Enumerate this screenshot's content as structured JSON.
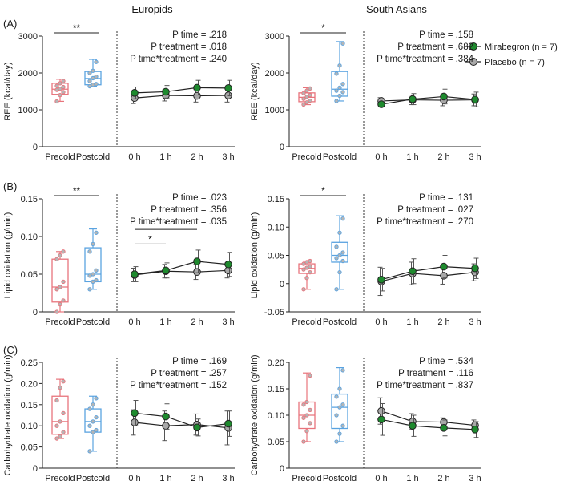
{
  "column_titles": [
    "Europids",
    "South Asians"
  ],
  "legend": {
    "mirabegron": "Mirabegron (n = 7)",
    "placebo": "Placebo (n = 7)"
  },
  "colors": {
    "precold": "#e8747c",
    "postcold": "#5aa3e0",
    "mirabegron": "#1e8a2e",
    "placebo": "#a8a8a8",
    "axis": "#222222"
  },
  "chart_data": [
    {
      "type": "box+line",
      "panel_label": "(A)",
      "group": "Europids",
      "ylabel": "REE (kcal/day)",
      "ylim": [
        0,
        3000
      ],
      "yticks": [
        0,
        1000,
        2000,
        3000
      ],
      "box_categories": [
        "Precold",
        "Postcold"
      ],
      "boxes": [
        {
          "name": "Precold",
          "min": 1230,
          "q1": 1420,
          "median": 1560,
          "q3": 1720,
          "max": 1830,
          "points": [
            1230,
            1400,
            1480,
            1540,
            1570,
            1620,
            1650,
            1720,
            1780
          ]
        },
        {
          "name": "Postcold",
          "min": 1640,
          "q1": 1680,
          "median": 1850,
          "q3": 2040,
          "max": 2370,
          "points": [
            1640,
            1680,
            1700,
            1780,
            1860,
            1900,
            2000,
            2060,
            2300
          ]
        }
      ],
      "time_categories": [
        "0 h",
        "1 h",
        "2 h",
        "3 h"
      ],
      "series": [
        {
          "name": "Mirabegron",
          "values": [
            1460,
            1490,
            1600,
            1590
          ],
          "err": [
            160,
            170,
            200,
            210
          ]
        },
        {
          "name": "Placebo",
          "values": [
            1320,
            1390,
            1380,
            1390
          ],
          "err": [
            150,
            150,
            170,
            180
          ]
        }
      ],
      "sig": [
        {
          "label": "**",
          "from": "Precold",
          "to": "Postcold"
        }
      ],
      "stats": [
        "P time = .218",
        "P treatment = .018",
        "P time*treatment = .240"
      ],
      "time_sig": []
    },
    {
      "type": "box+line",
      "panel_label": "",
      "group": "South Asians",
      "ylabel": "REE (kcal/day)",
      "ylim": [
        0,
        3000
      ],
      "yticks": [
        0,
        1000,
        2000,
        3000
      ],
      "box_categories": [
        "Precold",
        "Postcold"
      ],
      "boxes": [
        {
          "name": "Precold",
          "min": 1140,
          "q1": 1220,
          "median": 1340,
          "q3": 1460,
          "max": 1600,
          "points": [
            1140,
            1200,
            1250,
            1300,
            1350,
            1400,
            1450,
            1520,
            1580
          ]
        },
        {
          "name": "Postcold",
          "min": 1240,
          "q1": 1370,
          "median": 1560,
          "q3": 2040,
          "max": 2850,
          "points": [
            1240,
            1380,
            1480,
            1520,
            1600,
            1700,
            1980,
            2200,
            2800
          ]
        }
      ],
      "time_categories": [
        "0 h",
        "1 h",
        "2 h",
        "3 h"
      ],
      "series": [
        {
          "name": "Mirabegron",
          "values": [
            1150,
            1290,
            1360,
            1280
          ],
          "err": [
            60,
            150,
            200,
            200
          ]
        },
        {
          "name": "Placebo",
          "values": [
            1240,
            1270,
            1260,
            1270
          ],
          "err": [
            90,
            130,
            150,
            160
          ]
        }
      ],
      "sig": [
        {
          "label": "*",
          "from": "Precold",
          "to": "Postcold"
        }
      ],
      "stats": [
        "P time = .158",
        "P treatment = .682",
        "P time*treatment = .384"
      ],
      "time_sig": []
    },
    {
      "type": "box+line",
      "panel_label": "(B)",
      "group": "Europids",
      "ylabel": "Lipid oxidation (g/min)",
      "ylim": [
        0,
        0.15
      ],
      "yticks": [
        0,
        0.05,
        0.1,
        0.15
      ],
      "box_categories": [
        "Precold",
        "Postcold"
      ],
      "boxes": [
        {
          "name": "Precold",
          "min": 0.0,
          "q1": 0.013,
          "median": 0.033,
          "q3": 0.07,
          "max": 0.08,
          "points": [
            0.0,
            0.01,
            0.015,
            0.03,
            0.033,
            0.04,
            0.07,
            0.075,
            0.08
          ]
        },
        {
          "name": "Postcold",
          "min": 0.03,
          "q1": 0.04,
          "median": 0.05,
          "q3": 0.085,
          "max": 0.11,
          "points": [
            0.03,
            0.04,
            0.042,
            0.048,
            0.05,
            0.055,
            0.08,
            0.09,
            0.105
          ]
        }
      ],
      "time_categories": [
        "0 h",
        "1 h",
        "2 h",
        "3 h"
      ],
      "series": [
        {
          "name": "Mirabegron",
          "values": [
            0.05,
            0.055,
            0.067,
            0.063
          ],
          "err": [
            0.01,
            0.01,
            0.015,
            0.016
          ]
        },
        {
          "name": "Placebo",
          "values": [
            0.049,
            0.054,
            0.053,
            0.055
          ],
          "err": [
            0.009,
            0.009,
            0.01,
            0.01
          ]
        }
      ],
      "sig": [
        {
          "label": "**",
          "from": "Precold",
          "to": "Postcold"
        }
      ],
      "stats": [
        "P time = .023",
        "P treatment = .356",
        "P time*treatment = .035"
      ],
      "time_sig": [
        {
          "label": "*",
          "from": 0,
          "to": 1
        },
        {
          "label": "*",
          "from": 0,
          "to": 2
        }
      ]
    },
    {
      "type": "box+line",
      "panel_label": "",
      "group": "South Asians",
      "ylabel": "Lipid oxidation (g/min)",
      "ylim": [
        -0.05,
        0.15
      ],
      "yticks": [
        -0.05,
        0.0,
        0.05,
        0.1,
        0.15
      ],
      "box_categories": [
        "Precold",
        "Postcold"
      ],
      "boxes": [
        {
          "name": "Precold",
          "min": -0.01,
          "q1": 0.018,
          "median": 0.027,
          "q3": 0.035,
          "max": 0.04,
          "points": [
            -0.01,
            0.01,
            0.02,
            0.025,
            0.028,
            0.03,
            0.035,
            0.038,
            0.04
          ]
        },
        {
          "name": "Postcold",
          "min": -0.01,
          "q1": 0.038,
          "median": 0.05,
          "q3": 0.073,
          "max": 0.12,
          "points": [
            -0.01,
            0.02,
            0.04,
            0.045,
            0.05,
            0.055,
            0.065,
            0.09,
            0.115
          ]
        }
      ],
      "time_categories": [
        "0 h",
        "1 h",
        "2 h",
        "3 h"
      ],
      "series": [
        {
          "name": "Mirabegron",
          "values": [
            0.007,
            0.022,
            0.03,
            0.027
          ],
          "err": [
            0.02,
            0.022,
            0.02,
            0.018
          ]
        },
        {
          "name": "Placebo",
          "values": [
            0.004,
            0.018,
            0.014,
            0.02
          ],
          "err": [
            0.025,
            0.02,
            0.015,
            0.015
          ]
        }
      ],
      "sig": [
        {
          "label": "*",
          "from": "Precold",
          "to": "Postcold"
        }
      ],
      "stats": [
        "P time = .131",
        "P treatment = .027",
        "P time*treatment = .270"
      ],
      "time_sig": []
    },
    {
      "type": "box+line",
      "panel_label": "(C)",
      "group": "Europids",
      "ylabel": "Carbohydrate oxidation (g/min)",
      "ylim": [
        0,
        0.25
      ],
      "yticks": [
        0,
        0.05,
        0.1,
        0.15,
        0.2,
        0.25
      ],
      "box_categories": [
        "Precold",
        "Postcold"
      ],
      "boxes": [
        {
          "name": "Precold",
          "min": 0.07,
          "q1": 0.08,
          "median": 0.11,
          "q3": 0.17,
          "max": 0.21,
          "points": [
            0.07,
            0.075,
            0.085,
            0.1,
            0.11,
            0.13,
            0.16,
            0.19,
            0.205
          ]
        },
        {
          "name": "Postcold",
          "min": 0.04,
          "q1": 0.085,
          "median": 0.11,
          "q3": 0.14,
          "max": 0.17,
          "points": [
            0.04,
            0.085,
            0.09,
            0.1,
            0.11,
            0.12,
            0.14,
            0.15,
            0.165
          ]
        }
      ],
      "time_categories": [
        "0 h",
        "1 h",
        "2 h",
        "3 h"
      ],
      "series": [
        {
          "name": "Mirabegron",
          "values": [
            0.13,
            0.122,
            0.096,
            0.105
          ],
          "err": [
            0.03,
            0.03,
            0.02,
            0.03
          ]
        },
        {
          "name": "Placebo",
          "values": [
            0.108,
            0.1,
            0.103,
            0.095
          ],
          "err": [
            0.03,
            0.035,
            0.025,
            0.04
          ]
        }
      ],
      "sig": [],
      "stats": [
        "P time = .169",
        "P treatment = .257",
        "P time*treatment = .152"
      ],
      "time_sig": []
    },
    {
      "type": "box+line",
      "panel_label": "",
      "group": "South Asians",
      "ylabel": "Carbohydrate oxidation (g/min)",
      "ylim": [
        0,
        0.2
      ],
      "yticks": [
        0,
        0.05,
        0.1,
        0.15,
        0.2
      ],
      "box_categories": [
        "Precold",
        "Postcold"
      ],
      "boxes": [
        {
          "name": "Precold",
          "min": 0.05,
          "q1": 0.075,
          "median": 0.1,
          "q3": 0.125,
          "max": 0.18,
          "points": [
            0.05,
            0.07,
            0.085,
            0.095,
            0.1,
            0.11,
            0.12,
            0.125,
            0.175
          ]
        },
        {
          "name": "Postcold",
          "min": 0.05,
          "q1": 0.075,
          "median": 0.115,
          "q3": 0.14,
          "max": 0.19,
          "points": [
            0.05,
            0.065,
            0.08,
            0.1,
            0.115,
            0.12,
            0.135,
            0.15,
            0.185
          ]
        }
      ],
      "time_categories": [
        "0 h",
        "1 h",
        "2 h",
        "3 h"
      ],
      "series": [
        {
          "name": "Mirabegron",
          "values": [
            0.092,
            0.08,
            0.076,
            0.073
          ],
          "err": [
            0.03,
            0.02,
            0.015,
            0.015
          ]
        },
        {
          "name": "Placebo",
          "values": [
            0.108,
            0.088,
            0.087,
            0.081
          ],
          "err": [
            0.025,
            0.015,
            0.008,
            0.01
          ]
        }
      ],
      "sig": [],
      "stats": [
        "P time = .534",
        "P treatment = .116",
        "P time*treatment = .837"
      ],
      "time_sig": []
    }
  ]
}
